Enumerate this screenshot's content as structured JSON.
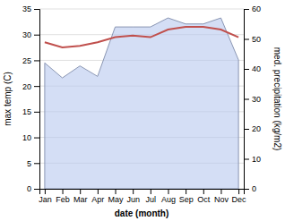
{
  "chart_data": {
    "type": "line",
    "categories": [
      "Jan",
      "Feb",
      "Mar",
      "Apr",
      "May",
      "Jun",
      "Jul",
      "Aug",
      "Sep",
      "Oct",
      "Nov",
      "Dec"
    ],
    "xlabel": "date (month)",
    "ylabel": "max temp (C)",
    "y2label": "med. precipitation (kg/m2)",
    "series": [
      {
        "type": "area",
        "axis": "y2",
        "color": "#b8c8ee",
        "values": [
          42.0,
          37.0,
          41.0,
          37.5,
          54.0,
          54.0,
          54.0,
          57.0,
          55.0,
          55.0,
          57.0,
          43.0
        ]
      },
      {
        "type": "line",
        "color": "#c0504d",
        "values": [
          28.5,
          27.5,
          27.8,
          28.5,
          29.5,
          29.8,
          29.5,
          31.0,
          31.5,
          31.5,
          31.0,
          29.5
        ]
      }
    ],
    "ylim": [
      0,
      35
    ],
    "yticks": [
      0,
      5,
      10,
      15,
      20,
      25,
      30,
      35
    ],
    "y2lim": [
      0,
      60
    ],
    "y2ticks": [
      0,
      10,
      20,
      30,
      40,
      50,
      60
    ],
    "grid": true
  }
}
